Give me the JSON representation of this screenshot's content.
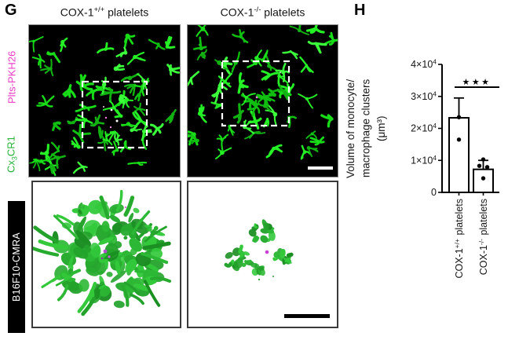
{
  "figure": {
    "panel_g": {
      "label": "G",
      "col_headers": [
        {
          "prefix": "COX-1",
          "sup": "+/+",
          "suffix": " platelets"
        },
        {
          "prefix": "COX-1",
          "sup": "-/-",
          "suffix": " platelets"
        }
      ],
      "side_labels": {
        "plts": {
          "text": "Plts-PKH26"
        },
        "cx3cr1": {
          "prefix": "Cx",
          "sub": "3",
          "suffix": "CR1"
        },
        "b16f10": {
          "text": "B16F10-CMRA"
        }
      },
      "colors": {
        "plts_label": "#e93bc6",
        "cx3cr1_label": "#27b43a",
        "cell_green": "#1ee01e",
        "roi_stroke": "#ffffff",
        "b16_bg": "#000000",
        "b16_text": "#ffffff"
      }
    },
    "panel_h": {
      "label": "H"
    }
  },
  "chart_data": {
    "type": "bar",
    "title": "",
    "ylabel": "Volume of monocyte/macrophage clusters (μm³)",
    "ylabel_lines": [
      "Volume of monocyte/",
      "macrophage clusters",
      "(μm³)"
    ],
    "categories": [
      {
        "prefix": "COX-1",
        "sup": "+/+",
        "suffix": " platelets"
      },
      {
        "prefix": "COX-1",
        "sup": "-/-",
        "suffix": " platelets"
      }
    ],
    "values": [
      23300,
      7200
    ],
    "error_sd": [
      6200,
      2800
    ],
    "points": [
      [
        {
          "v": 23500,
          "dx": 0
        },
        {
          "v": 16500,
          "dx": 0
        }
      ],
      [
        {
          "v": 10300,
          "dx": 0
        },
        {
          "v": 8300,
          "dx": -5
        },
        {
          "v": 7900,
          "dx": 5
        },
        {
          "v": 4400,
          "dx": 0
        }
      ]
    ],
    "ylim": [
      0,
      40000
    ],
    "yticks": [
      0,
      10000,
      20000,
      30000,
      40000
    ],
    "ytick_labels": [
      {
        "m": "0",
        "e": ""
      },
      {
        "m": "1×10",
        "e": "4"
      },
      {
        "m": "2×10",
        "e": "4"
      },
      {
        "m": "3×10",
        "e": "4"
      },
      {
        "m": "4×10",
        "e": "4"
      }
    ],
    "significance": "***",
    "grid": false,
    "legend": false,
    "bar_fill": "#ffffff",
    "bar_stroke": "#000000",
    "point_color": "#000000"
  }
}
